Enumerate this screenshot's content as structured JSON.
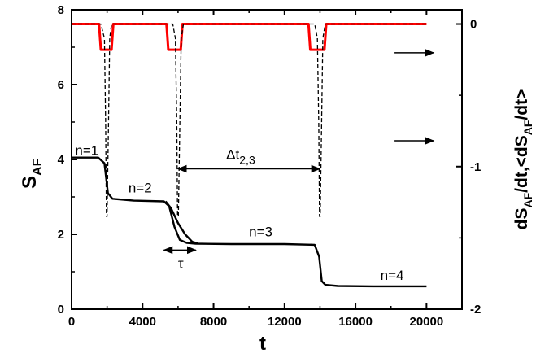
{
  "chart_data": {
    "type": "line",
    "x_axis": {
      "label": "t",
      "range": [
        0,
        22000
      ],
      "ticks": [
        0,
        4000,
        8000,
        12000,
        16000,
        20000
      ],
      "tick_labels": [
        "0",
        "4000",
        "8000",
        "12000",
        "16000",
        "20000"
      ]
    },
    "y_left": {
      "label_main": "S",
      "label_sub": "AF",
      "range": [
        0,
        8
      ],
      "ticks": [
        0,
        2,
        4,
        6,
        8
      ],
      "tick_labels": [
        "0",
        "2",
        "4",
        "6",
        "8"
      ]
    },
    "y_right": {
      "label_parts": [
        {
          "text": "dS",
          "sub": false
        },
        {
          "text": "AF",
          "sub": true
        },
        {
          "text": "/dt,<dS",
          "sub": false
        },
        {
          "text": "AF",
          "sub": true
        },
        {
          "text": "/dt>",
          "sub": false
        }
      ],
      "range": [
        -2,
        0.1
      ],
      "ticks": [
        0,
        -1,
        -2
      ],
      "tick_labels": [
        "0",
        "-1",
        "-2"
      ]
    },
    "series": [
      {
        "axis": "left",
        "color": "#000000",
        "style": "solid",
        "x": [
          0,
          1500,
          1850,
          2050,
          2300,
          3500,
          5200,
          5500,
          5800,
          6100,
          6500,
          7000,
          9000,
          12000,
          13700,
          13950,
          14100,
          14300,
          15000,
          17000,
          20000
        ],
        "y": [
          4.05,
          4.05,
          3.9,
          3.1,
          2.95,
          2.9,
          2.88,
          2.75,
          2.2,
          1.85,
          1.77,
          1.75,
          1.74,
          1.74,
          1.72,
          1.4,
          0.75,
          0.65,
          0.62,
          0.61,
          0.61
        ]
      },
      {
        "axis": "left",
        "color": "#000000",
        "style": "solid",
        "x": [
          5300,
          5600,
          6000,
          6400,
          6800,
          7100
        ],
        "y": [
          2.88,
          2.7,
          2.3,
          2.0,
          1.8,
          1.76
        ]
      },
      {
        "axis": "right",
        "color": "#ff0000",
        "style": "solid",
        "x": [
          0,
          1550,
          1650,
          2250,
          2350,
          5350,
          5450,
          6150,
          6250,
          13350,
          13450,
          14250,
          14350,
          20000
        ],
        "y": [
          0,
          0,
          -0.18,
          -0.18,
          0,
          0,
          -0.18,
          -0.18,
          0,
          0,
          -0.18,
          -0.18,
          0,
          0
        ]
      },
      {
        "axis": "right",
        "color": "#000000",
        "style": "dashed",
        "x": [
          0,
          1650,
          1850,
          1920,
          1960,
          2000,
          2080,
          2150,
          2250,
          5700,
          5850,
          5930,
          5970,
          6020,
          6100,
          6180,
          6300,
          13700,
          13850,
          13930,
          13970,
          14010,
          14090,
          14160,
          14300,
          20000
        ],
        "y": [
          0,
          0,
          -0.1,
          -0.7,
          -1.35,
          -1.35,
          -0.7,
          -0.1,
          0,
          0,
          -0.1,
          -0.7,
          -1.35,
          -1.35,
          -0.7,
          -0.1,
          0,
          0,
          -0.1,
          -0.7,
          -1.35,
          -1.35,
          -0.7,
          -0.1,
          0,
          0
        ]
      }
    ],
    "annotations": [
      {
        "text": "n=1",
        "x": 200,
        "y": 4.12
      },
      {
        "text": "n=2",
        "x": 3200,
        "y": 3.12
      },
      {
        "text": "n=3",
        "x": 10000,
        "y": 1.95
      },
      {
        "text": "n=4",
        "x": 17400,
        "y": 0.78
      },
      {
        "text": "τ",
        "x": 6000,
        "y": 1.1
      }
    ],
    "delta_label": {
      "main": "Δt",
      "sub": "2,3",
      "x_from": 6000,
      "x_to": 14000,
      "y": 3.75
    },
    "tau_arrow": {
      "x_from": 5200,
      "x_to": 7000,
      "y": 1.58
    },
    "right_arrows": [
      {
        "x_from": 18200,
        "x_to": 20400,
        "y": 6.85
      },
      {
        "x_from": 18200,
        "x_to": 20400,
        "y": 4.5
      }
    ],
    "grid": false,
    "legend": "none"
  }
}
